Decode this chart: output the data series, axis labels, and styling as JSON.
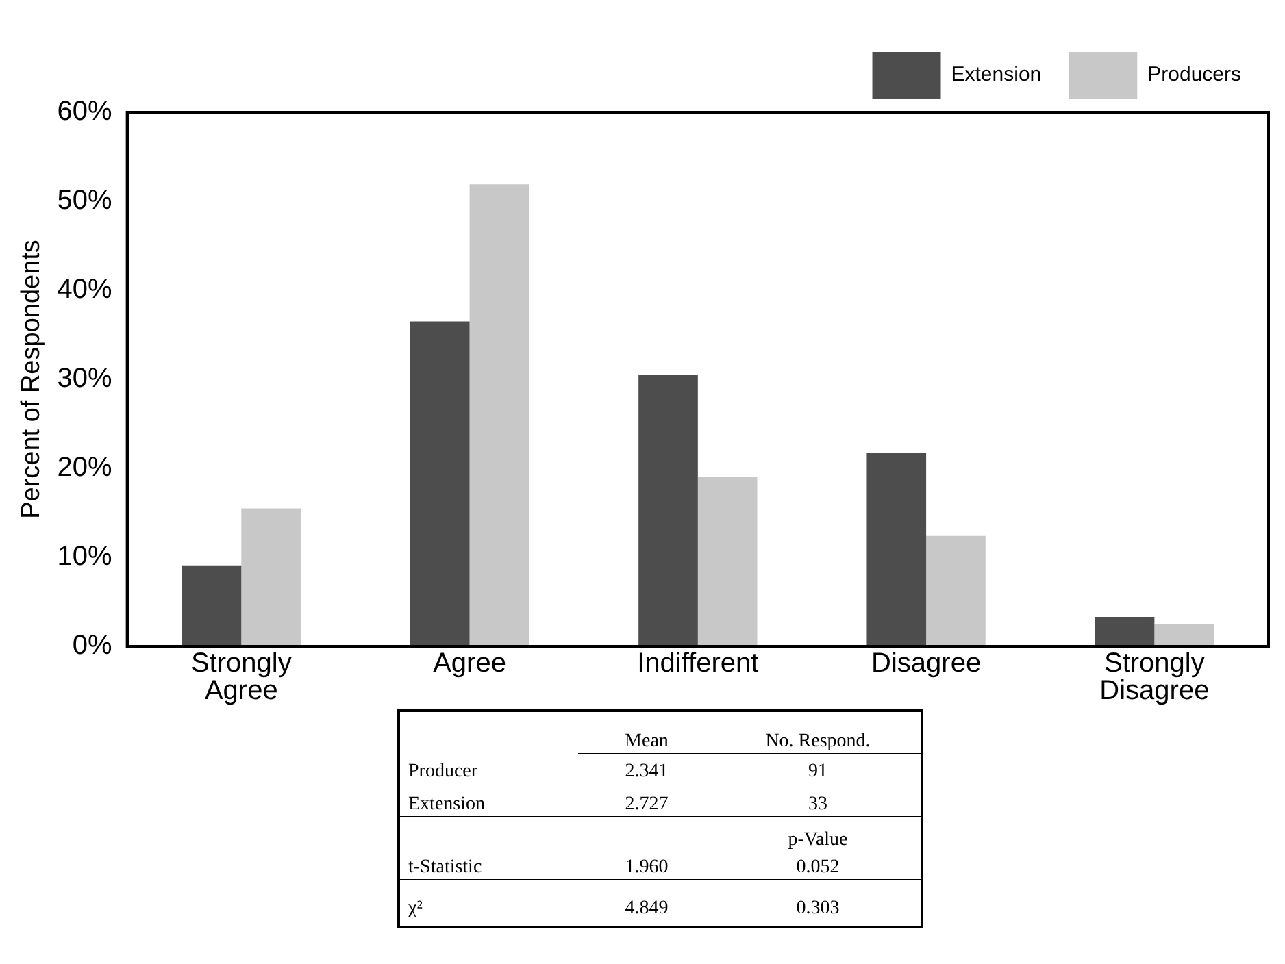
{
  "chart_data": {
    "type": "bar",
    "ylabel": "Percent of Respondents",
    "categories": [
      "Strongly Agree",
      "Agree",
      "Indifferent",
      "Disagree",
      "Strongly Disagree"
    ],
    "series": [
      {
        "name": "Extension",
        "color": "#4d4d4d",
        "values": [
          9.1,
          36.5,
          30.5,
          21.7,
          3.3
        ]
      },
      {
        "name": "Producers",
        "color": "#c8c8c8",
        "values": [
          15.5,
          51.9,
          19.0,
          12.4,
          2.5
        ]
      }
    ],
    "ylim": [
      0,
      60
    ],
    "yticks": [
      {
        "value": 0,
        "label": "0%"
      },
      {
        "value": 10,
        "label": "10%"
      },
      {
        "value": 20,
        "label": "20%"
      },
      {
        "value": 30,
        "label": "30%"
      },
      {
        "value": 40,
        "label": "40%"
      },
      {
        "value": 50,
        "label": "50%"
      },
      {
        "value": 60,
        "label": "60%"
      }
    ],
    "grid": false,
    "legend": "top right",
    "annotations": [
      "Mean",
      "No. Respond.",
      "Producer",
      "2.341",
      "91",
      "Extension",
      "2.727",
      "33",
      "p-Value",
      "t-Statistic",
      "1.960",
      "0.052",
      "χ²",
      "4.849",
      "0.303"
    ]
  }
}
